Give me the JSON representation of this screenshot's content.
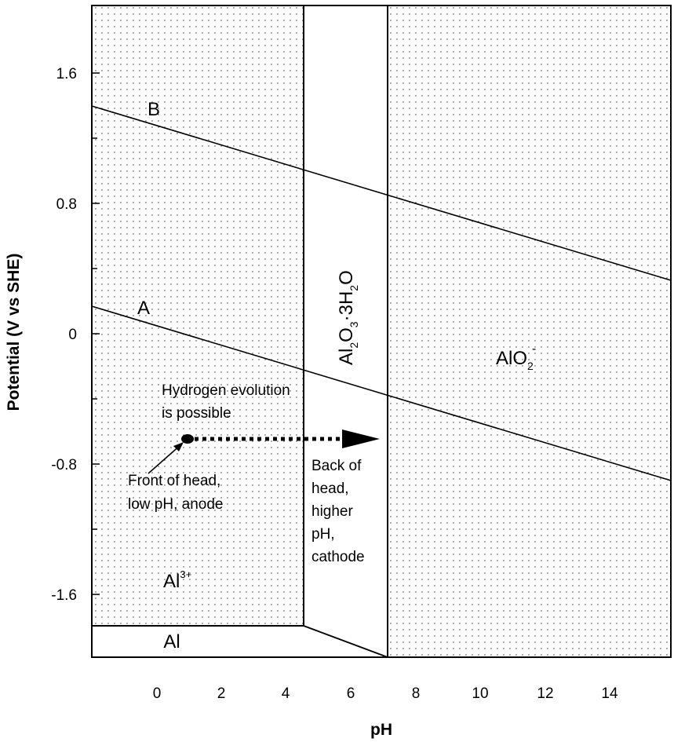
{
  "axes": {
    "x_title": "pH",
    "y_title": "Potential (V vs SHE)",
    "x_ticks": [
      "0",
      "2",
      "4",
      "6",
      "8",
      "10",
      "12",
      "14"
    ],
    "y_ticks": [
      "1.6",
      "0.8",
      "0",
      "-0.8",
      "-1.6"
    ]
  },
  "regions": {
    "al3": "Al",
    "al3_sup": "3+",
    "oxide_main": "Al",
    "oxide_sub1": "2",
    "oxide_mid": "O",
    "oxide_sub2": "3",
    "oxide_tail": "·3H",
    "oxide_sub3": "2",
    "oxide_end": "O",
    "aluminate_main": "AlO",
    "aluminate_sub": "2",
    "aluminate_sup": "-",
    "metal": "Al"
  },
  "lines": {
    "a": "A",
    "b": "B"
  },
  "annotations": {
    "hydrogen_1": "Hydrogen evolution",
    "hydrogen_2": "is possible",
    "front_1": "Front of head,",
    "front_2": "low pH, anode",
    "back_1": "Back of",
    "back_2": "head,",
    "back_3": "higher",
    "back_4": "pH,",
    "back_5": "cathode"
  }
}
